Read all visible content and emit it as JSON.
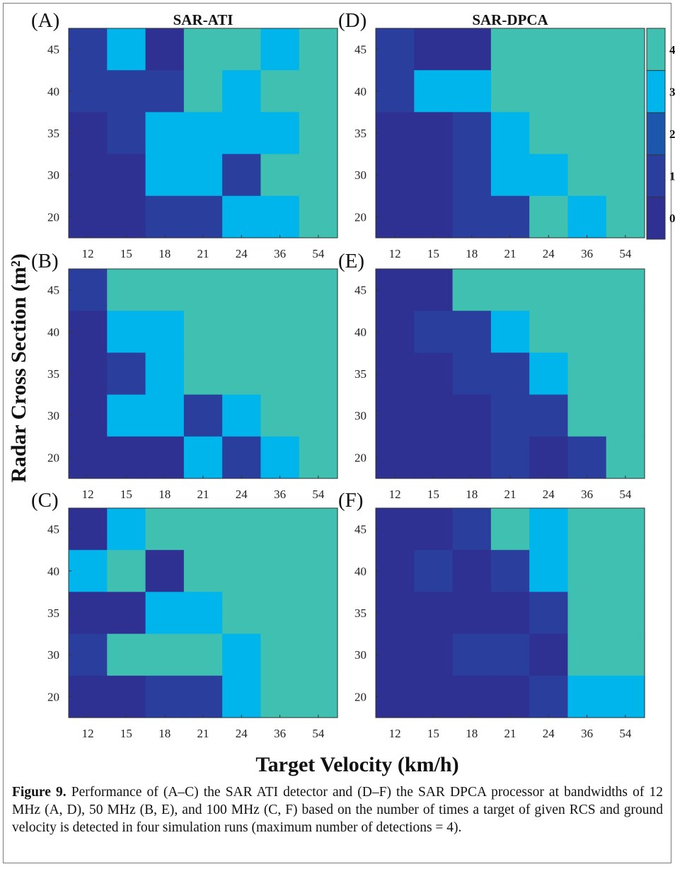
{
  "figure": {
    "shared_ylabel": "Radar Cross Section (m²)",
    "shared_xlabel": "Target Velocity (km/h)",
    "colorbar": {
      "ticks": [
        "4",
        "3",
        "2",
        "1",
        "0"
      ],
      "colors": {
        "0": "#2e3192",
        "1": "#2a3e9e",
        "2": "#1c57ab",
        "3": "#00b4ec",
        "4": "#3fc0b0"
      }
    },
    "caption": {
      "label": "Figure 9.",
      "text": " Performance of (A–C) the SAR ATI detector and (D–F) the SAR DPCA processor at bandwidths of 12 MHz (A, D), 50 MHz (B, E), and 100 MHz (C, F) based on the number of times a target of given RCS and ground velocity is detected in four simulation runs (maximum number of detections = 4)."
    }
  },
  "chart_data": [
    {
      "panel": "(A)",
      "title": "SAR-ATI",
      "type": "heatmap",
      "x": [
        "12",
        "15",
        "18",
        "21",
        "24",
        "36",
        "54"
      ],
      "y": [
        "45",
        "40",
        "35",
        "30",
        "20"
      ],
      "values": [
        [
          1,
          3,
          0,
          4,
          4,
          3,
          4
        ],
        [
          1,
          1,
          1,
          4,
          3,
          4,
          4
        ],
        [
          0,
          1,
          3,
          3,
          3,
          3,
          4
        ],
        [
          0,
          0,
          3,
          3,
          1,
          4,
          4
        ],
        [
          0,
          0,
          1,
          1,
          3,
          3,
          4
        ]
      ]
    },
    {
      "panel": "(B)",
      "title": "",
      "type": "heatmap",
      "x": [
        "12",
        "15",
        "18",
        "21",
        "24",
        "36",
        "54"
      ],
      "y": [
        "45",
        "40",
        "35",
        "30",
        "20"
      ],
      "values": [
        [
          1,
          4,
          4,
          4,
          4,
          4,
          4
        ],
        [
          0,
          3,
          3,
          4,
          4,
          4,
          4
        ],
        [
          0,
          1,
          3,
          4,
          4,
          4,
          4
        ],
        [
          0,
          3,
          3,
          1,
          3,
          4,
          4
        ],
        [
          0,
          0,
          0,
          3,
          1,
          3,
          4
        ]
      ]
    },
    {
      "panel": "(C)",
      "title": "",
      "type": "heatmap",
      "x": [
        "12",
        "15",
        "18",
        "21",
        "24",
        "36",
        "54"
      ],
      "y": [
        "45",
        "40",
        "35",
        "30",
        "20"
      ],
      "values": [
        [
          0,
          3,
          4,
          4,
          4,
          4,
          4
        ],
        [
          3,
          4,
          0,
          4,
          4,
          4,
          4
        ],
        [
          0,
          0,
          3,
          3,
          4,
          4,
          4
        ],
        [
          1,
          4,
          4,
          4,
          3,
          4,
          4
        ],
        [
          0,
          0,
          1,
          1,
          3,
          4,
          4
        ]
      ]
    },
    {
      "panel": "(D)",
      "title": "SAR-DPCA",
      "type": "heatmap",
      "x": [
        "12",
        "15",
        "18",
        "21",
        "24",
        "36",
        "54"
      ],
      "y": [
        "45",
        "40",
        "35",
        "30",
        "20"
      ],
      "values": [
        [
          1,
          0,
          0,
          4,
          4,
          4,
          4
        ],
        [
          1,
          3,
          3,
          4,
          4,
          4,
          4
        ],
        [
          0,
          0,
          1,
          3,
          4,
          4,
          4
        ],
        [
          0,
          0,
          1,
          3,
          3,
          4,
          4
        ],
        [
          0,
          0,
          1,
          1,
          4,
          3,
          4
        ]
      ]
    },
    {
      "panel": "(E)",
      "title": "",
      "type": "heatmap",
      "x": [
        "12",
        "15",
        "18",
        "21",
        "24",
        "36",
        "54"
      ],
      "y": [
        "45",
        "40",
        "35",
        "30",
        "20"
      ],
      "values": [
        [
          0,
          0,
          4,
          4,
          4,
          4,
          4
        ],
        [
          0,
          1,
          1,
          3,
          4,
          4,
          4
        ],
        [
          0,
          0,
          1,
          1,
          3,
          4,
          4
        ],
        [
          0,
          0,
          0,
          1,
          1,
          4,
          4
        ],
        [
          0,
          0,
          0,
          1,
          0,
          1,
          4
        ]
      ]
    },
    {
      "panel": "(F)",
      "title": "",
      "type": "heatmap",
      "x": [
        "12",
        "15",
        "18",
        "21",
        "24",
        "36",
        "54"
      ],
      "y": [
        "45",
        "40",
        "35",
        "30",
        "20"
      ],
      "values": [
        [
          0,
          0,
          1,
          4,
          3,
          4,
          4
        ],
        [
          0,
          1,
          0,
          1,
          3,
          4,
          4
        ],
        [
          0,
          0,
          0,
          0,
          1,
          4,
          4
        ],
        [
          0,
          0,
          1,
          1,
          0,
          4,
          4
        ],
        [
          0,
          0,
          0,
          0,
          1,
          3,
          3
        ]
      ]
    }
  ]
}
